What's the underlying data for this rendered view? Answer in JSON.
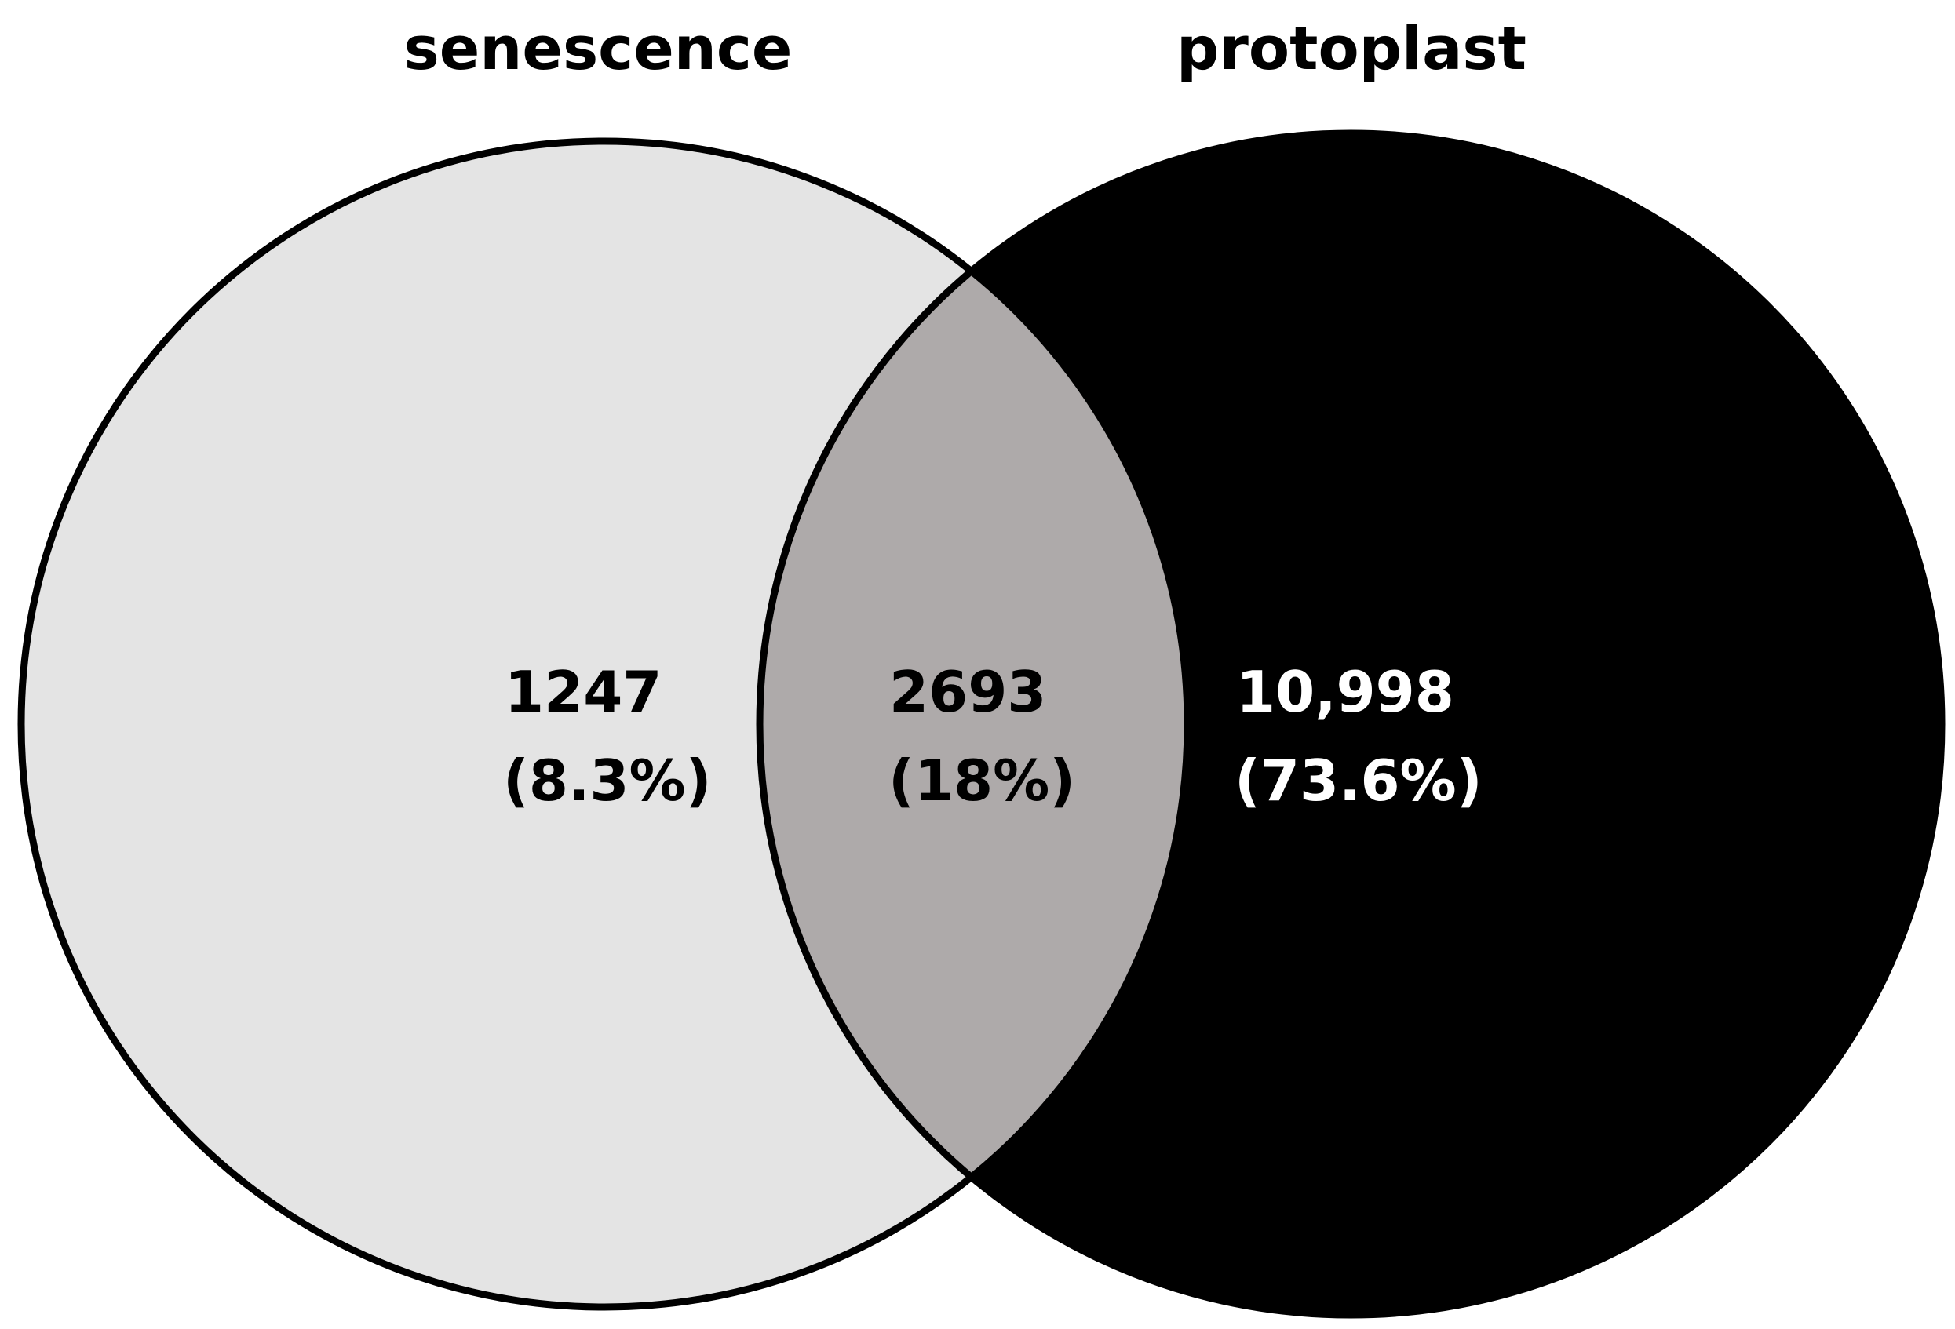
{
  "diagram": {
    "type": "venn",
    "sets": [
      {
        "name": "senescence",
        "fill": "#e4e4e4"
      },
      {
        "name": "protoplast",
        "fill": "#000000"
      }
    ],
    "regions": {
      "senescence_only": {
        "count": "1247",
        "percent": "(8.3%)",
        "text_color": "#000000"
      },
      "intersection": {
        "count": "2693",
        "percent": "(18%)",
        "fill": "#aeaaaa",
        "text_color": "#000000"
      },
      "protoplast_only": {
        "count": "10,998",
        "percent": "(73.6%)",
        "text_color": "#ffffff"
      }
    },
    "outline_color": "#000000"
  }
}
